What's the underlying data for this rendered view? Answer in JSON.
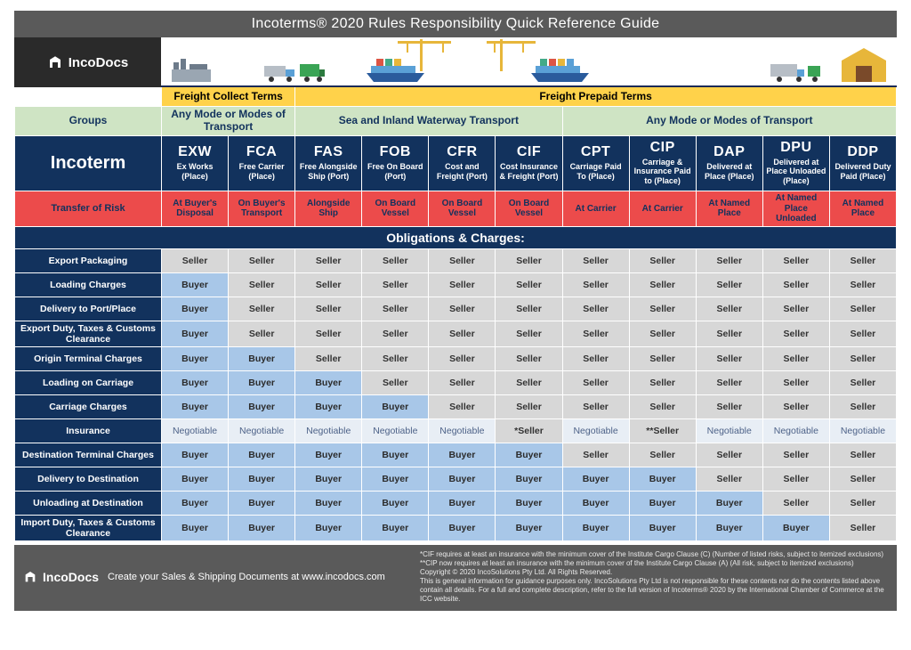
{
  "title": "Incoterms® 2020 Rules Responsibility Quick Reference Guide",
  "brand": "IncoDocs",
  "freight_terms": [
    "Freight Collect Terms",
    "Freight Prepaid Terms"
  ],
  "groups_label": "Groups",
  "groups": [
    "Any Mode or Modes of Transport",
    "Sea and Inland Waterway Transport",
    "Any Mode or Modes of Transport"
  ],
  "incoterm_label": "Incoterm",
  "terms": [
    {
      "abbr": "EXW",
      "full": "Ex Works (Place)"
    },
    {
      "abbr": "FCA",
      "full": "Free Carrier (Place)"
    },
    {
      "abbr": "FAS",
      "full": "Free Alongside Ship (Port)"
    },
    {
      "abbr": "FOB",
      "full": "Free On Board (Port)"
    },
    {
      "abbr": "CFR",
      "full": "Cost and Freight (Port)"
    },
    {
      "abbr": "CIF",
      "full": "Cost Insurance & Freight (Port)"
    },
    {
      "abbr": "CPT",
      "full": "Carriage Paid To (Place)"
    },
    {
      "abbr": "CIP",
      "full": "Carriage & Insurance Paid to (Place)"
    },
    {
      "abbr": "DAP",
      "full": "Delivered at Place (Place)"
    },
    {
      "abbr": "DPU",
      "full": "Delivered at Place Unloaded (Place)"
    },
    {
      "abbr": "DDP",
      "full": "Delivered Duty Paid (Place)"
    }
  ],
  "risk_label": "Transfer of Risk",
  "risk": [
    "At Buyer's Disposal",
    "On Buyer's Transport",
    "Alongside Ship",
    "On Board Vessel",
    "On Board Vessel",
    "On Board Vessel",
    "At Carrier",
    "At Carrier",
    "At Named Place",
    "At Named Place Unloaded",
    "At Named Place"
  ],
  "oblig_header": "Obligations & Charges:",
  "cell_text": {
    "Seller": "Seller",
    "Buyer": "Buyer",
    "Negotiable": "Negotiable",
    "*Seller": "*Seller",
    "**Seller": "**Seller"
  },
  "rows": [
    {
      "label": "Export Packaging",
      "v": [
        "Seller",
        "Seller",
        "Seller",
        "Seller",
        "Seller",
        "Seller",
        "Seller",
        "Seller",
        "Seller",
        "Seller",
        "Seller"
      ]
    },
    {
      "label": "Loading Charges",
      "v": [
        "Buyer",
        "Seller",
        "Seller",
        "Seller",
        "Seller",
        "Seller",
        "Seller",
        "Seller",
        "Seller",
        "Seller",
        "Seller"
      ]
    },
    {
      "label": "Delivery to Port/Place",
      "v": [
        "Buyer",
        "Seller",
        "Seller",
        "Seller",
        "Seller",
        "Seller",
        "Seller",
        "Seller",
        "Seller",
        "Seller",
        "Seller"
      ]
    },
    {
      "label": "Export Duty, Taxes & Customs Clearance",
      "v": [
        "Buyer",
        "Seller",
        "Seller",
        "Seller",
        "Seller",
        "Seller",
        "Seller",
        "Seller",
        "Seller",
        "Seller",
        "Seller"
      ]
    },
    {
      "label": "Origin Terminal Charges",
      "v": [
        "Buyer",
        "Buyer",
        "Seller",
        "Seller",
        "Seller",
        "Seller",
        "Seller",
        "Seller",
        "Seller",
        "Seller",
        "Seller"
      ]
    },
    {
      "label": "Loading on Carriage",
      "v": [
        "Buyer",
        "Buyer",
        "Buyer",
        "Seller",
        "Seller",
        "Seller",
        "Seller",
        "Seller",
        "Seller",
        "Seller",
        "Seller"
      ]
    },
    {
      "label": "Carriage Charges",
      "v": [
        "Buyer",
        "Buyer",
        "Buyer",
        "Buyer",
        "Seller",
        "Seller",
        "Seller",
        "Seller",
        "Seller",
        "Seller",
        "Seller"
      ]
    },
    {
      "label": "Insurance",
      "v": [
        "Negotiable",
        "Negotiable",
        "Negotiable",
        "Negotiable",
        "Negotiable",
        "*Seller",
        "Negotiable",
        "**Seller",
        "Negotiable",
        "Negotiable",
        "Negotiable"
      ]
    },
    {
      "label": "Destination Terminal Charges",
      "v": [
        "Buyer",
        "Buyer",
        "Buyer",
        "Buyer",
        "Buyer",
        "Buyer",
        "Seller",
        "Seller",
        "Seller",
        "Seller",
        "Seller"
      ]
    },
    {
      "label": "Delivery to Destination",
      "v": [
        "Buyer",
        "Buyer",
        "Buyer",
        "Buyer",
        "Buyer",
        "Buyer",
        "Buyer",
        "Buyer",
        "Seller",
        "Seller",
        "Seller"
      ]
    },
    {
      "label": "Unloading at Destination",
      "v": [
        "Buyer",
        "Buyer",
        "Buyer",
        "Buyer",
        "Buyer",
        "Buyer",
        "Buyer",
        "Buyer",
        "Buyer",
        "Seller",
        "Seller"
      ]
    },
    {
      "label": "Import Duty, Taxes & Customs Clearance",
      "v": [
        "Buyer",
        "Buyer",
        "Buyer",
        "Buyer",
        "Buyer",
        "Buyer",
        "Buyer",
        "Buyer",
        "Buyer",
        "Buyer",
        "Seller"
      ]
    }
  ],
  "footer": {
    "tag": "Create your Sales & Shipping Documents at www.incodocs.com",
    "notes": [
      "*CIF requires at least an insurance with the minimum cover of the Institute Cargo Clause (C) (Number of listed risks, subject to itemized exclusions)",
      "**CIP now requires at least an insurance with the minimum cover of the Institute Cargo Clause (A) (All risk, subject to itemized exclusions)",
      "Copyright © 2020 IncoSolutions Pty Ltd. All Rights Reserved.",
      "This is general information for guidance purposes only.  IncoSolutions Pty Ltd is not responsible for these contents nor do the contents listed above contain all details.  For a full and complete description, refer to the full version of Incoterms® 2020 by the International Chamber of Commerce at the ICC website."
    ]
  },
  "colors": {
    "seller_bg": "#d7d7d7",
    "buyer_bg": "#a8c7e8",
    "neg_bg": "#e8eef5",
    "navy": "#12325d",
    "risk_bg": "#ec4b4b",
    "yellow": "#ffd24a",
    "green": "#cfe4c4"
  },
  "layout": {
    "freight_spans": [
      2,
      9
    ],
    "group_spans": [
      2,
      4,
      5
    ],
    "col_count": 11
  }
}
